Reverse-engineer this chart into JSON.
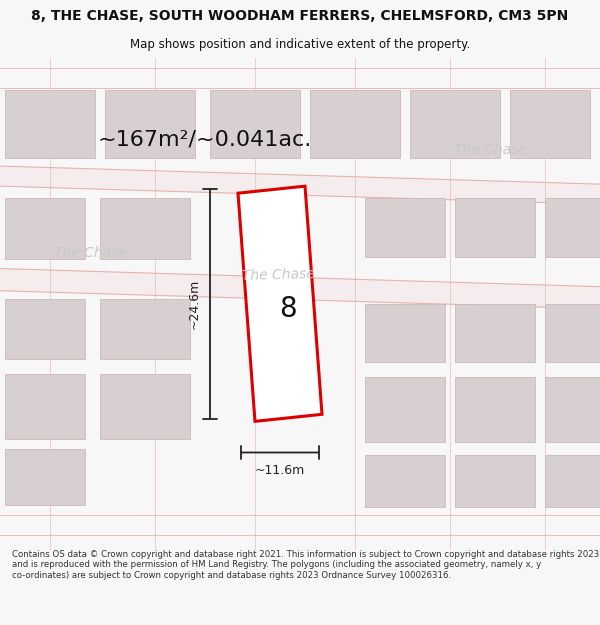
{
  "title": "8, THE CHASE, SOUTH WOODHAM FERRERS, CHELMSFORD, CM3 5PN",
  "subtitle": "Map shows position and indicative extent of the property.",
  "area_label": "~167m²/~0.041ac.",
  "house_number": "8",
  "dim_height": "~24.6m",
  "dim_width": "~11.6m",
  "road_label_top_right": "The Chase",
  "road_label_mid_left": "The Chase",
  "road_label_mid_center": "The Chase",
  "footer": "Contains OS data © Crown copyright and database right 2021. This information is subject to Crown copyright and database rights 2023 and is reproduced with the permission of HM Land Registry. The polygons (including the associated geometry, namely x, y co-ordinates) are subject to Crown copyright and database rights 2023 Ordnance Survey 100026316.",
  "bg_color": "#f7f7f7",
  "map_bg_color": "#ffffff",
  "road_band_color": "#f5eded",
  "road_line_color": "#e8b0b0",
  "block_face_color": "#d8d0d0",
  "block_edge_color": "#ccb8b8",
  "plot_border_color": "#dd0000",
  "plot_fill_color": "#ffffff",
  "dim_color": "#222222",
  "text_color": "#111111",
  "footer_color": "#333333",
  "road_text_color": "#c8c8c8",
  "title_fontsize": 10,
  "subtitle_fontsize": 8.5,
  "area_fontsize": 16,
  "road_fontsize": 10,
  "dim_fontsize": 9,
  "footer_fontsize": 6.2
}
